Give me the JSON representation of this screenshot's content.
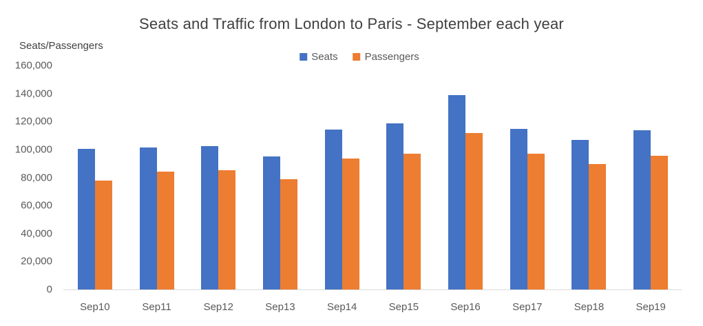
{
  "chart_data": {
    "type": "bar",
    "title": "Seats and Traffic from London to Paris - September each year",
    "ylabel": "Seats/Passengers",
    "xlabel": "",
    "categories": [
      "Sep10",
      "Sep11",
      "Sep12",
      "Sep13",
      "Sep14",
      "Sep15",
      "Sep16",
      "Sep17",
      "Sep18",
      "Sep19"
    ],
    "series": [
      {
        "name": "Seats",
        "color": "#4472C4",
        "values": [
          100400,
          101500,
          102400,
          95200,
          114400,
          118500,
          138800,
          114500,
          107000,
          113700
        ]
      },
      {
        "name": "Passengers",
        "color": "#ED7D31",
        "values": [
          78000,
          84200,
          85200,
          78800,
          93500,
          97100,
          111800,
          97000,
          89800,
          95400
        ]
      }
    ],
    "ylim": [
      0,
      160000
    ],
    "yticks": [
      0,
      20000,
      40000,
      60000,
      80000,
      100000,
      120000,
      140000,
      160000
    ],
    "grid": false,
    "legend_position": "top-center",
    "colors": {
      "axis_line": "#d9d9d9",
      "title_text": "#404040",
      "axis_text": "#595959"
    }
  }
}
